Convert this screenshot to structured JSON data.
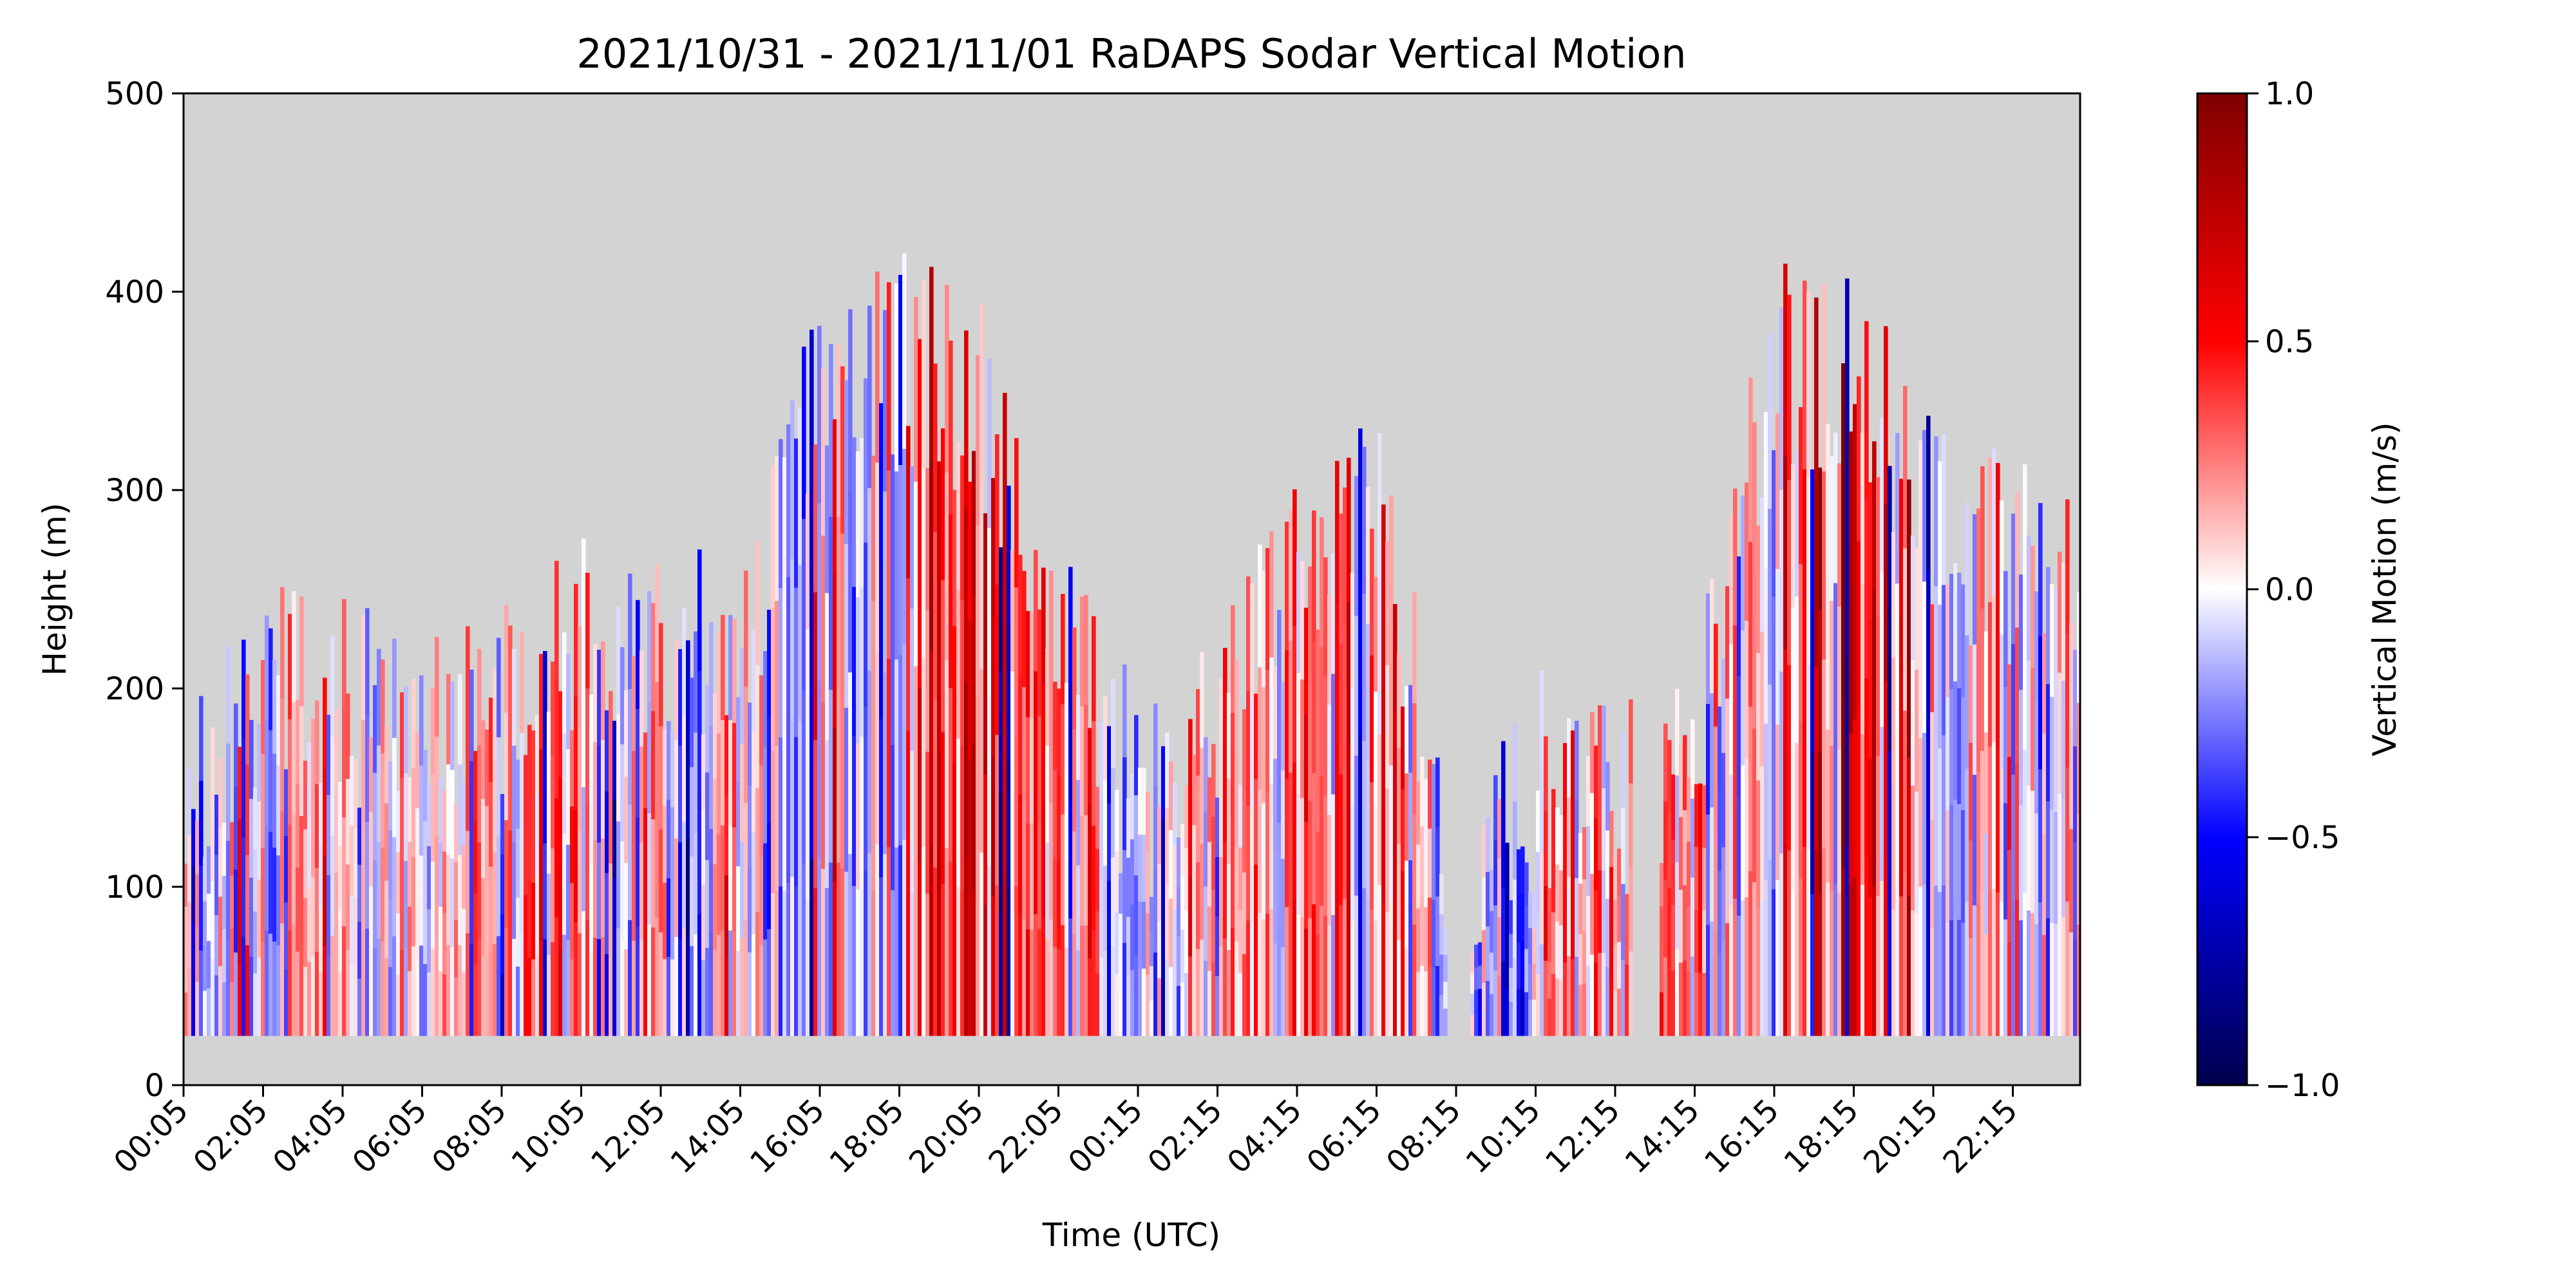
{
  "chart_data": {
    "type": "heatmap",
    "title": "2021/10/31 - 2021/11/01 RaDAPS Sodar Vertical Motion",
    "xlabel": "Time (UTC)",
    "ylabel": "Height (m)",
    "x_tick_labels": [
      "00:05",
      "02:05",
      "04:05",
      "06:05",
      "08:05",
      "10:05",
      "12:05",
      "14:05",
      "16:05",
      "18:05",
      "20:05",
      "22:05",
      "00:15",
      "02:15",
      "04:15",
      "06:15",
      "08:15",
      "10:15",
      "12:15",
      "14:15",
      "16:15",
      "18:15",
      "20:15",
      "22:15"
    ],
    "y_ticks": [
      0,
      100,
      200,
      300,
      400,
      500
    ],
    "ylim": [
      0,
      500
    ],
    "background_color": "#d3d3d3",
    "colorbar": {
      "label": "Vertical Motion (m/s)",
      "ticks": [
        -1.0,
        -0.5,
        0.0,
        0.5,
        1.0
      ],
      "tick_labels": [
        "−1.0",
        "−0.5",
        "0.0",
        "0.5",
        "1.0"
      ],
      "range": [
        -1.0,
        1.0
      ],
      "colormap": "seismic"
    },
    "data_floor_m": 25,
    "approx_data_top_m_per_tick": [
      190,
      235,
      235,
      205,
      235,
      265,
      250,
      265,
      385,
      400,
      385,
      265,
      175,
      220,
      295,
      340,
      130,
      190,
      175,
      205,
      400,
      400,
      325,
      295
    ],
    "dominant_sign_per_tick": [
      "mixed",
      "mixed",
      "mixed",
      "mixed",
      "positive",
      "mixed",
      "mixed",
      "mixed",
      "mixed",
      "strong-positive",
      "strong-positive",
      "mixed",
      "mixed",
      "positive",
      "positive",
      "mixed",
      "negative",
      "positive",
      "positive",
      "mixed",
      "strong-positive",
      "strong-positive",
      "mixed",
      "mixed"
    ]
  }
}
